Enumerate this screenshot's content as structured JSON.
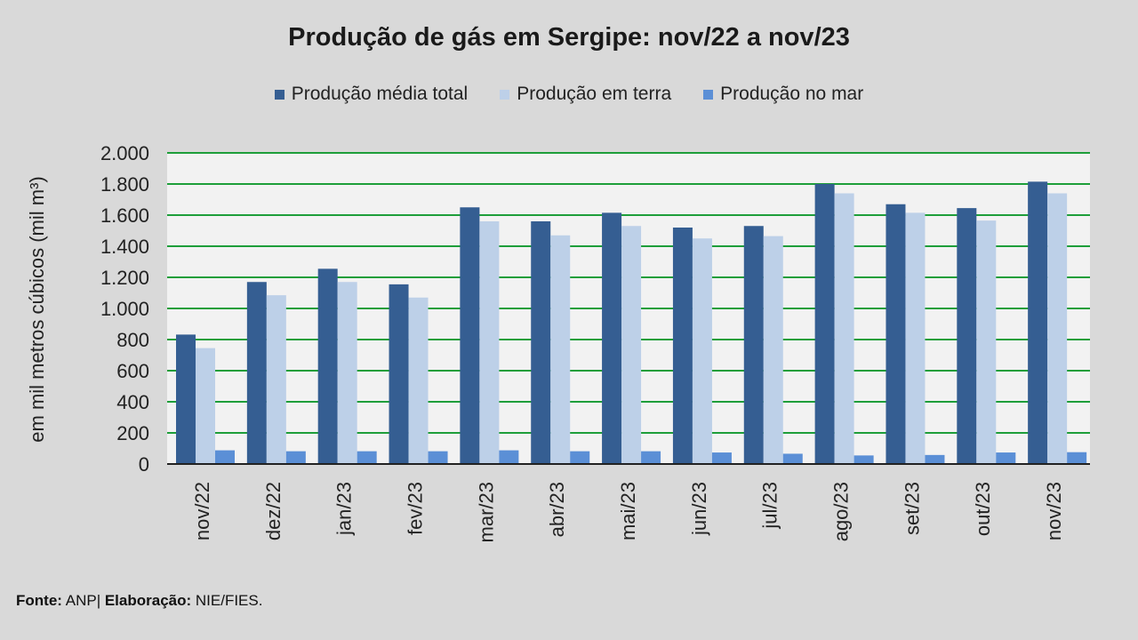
{
  "chart_data": {
    "type": "bar",
    "title": "Produção de gás em Sergipe: nov/22 a nov/23",
    "ylabel": "em mil metros cúbicos (mil m³)",
    "xlabel": "",
    "ylim": [
      0,
      2000
    ],
    "yticks": [
      0,
      200,
      400,
      600,
      800,
      1000,
      1200,
      1400,
      1600,
      1800,
      2000
    ],
    "ytick_labels": [
      "0",
      "200",
      "400",
      "600",
      "800",
      "1.000",
      "1.200",
      "1.400",
      "1.600",
      "1.800",
      "2.000"
    ],
    "grid": true,
    "legend_position": "top-center",
    "categories": [
      "nov/22",
      "dez/22",
      "jan/23",
      "fev/23",
      "mar/23",
      "abr/23",
      "mai/23",
      "jun/23",
      "jul/23",
      "ago/23",
      "set/23",
      "out/23",
      "nov/23"
    ],
    "series": [
      {
        "name": "Produção média total",
        "color": "#355e92",
        "values": [
          832,
          1170,
          1255,
          1155,
          1650,
          1560,
          1615,
          1520,
          1530,
          1800,
          1670,
          1645,
          1815
        ]
      },
      {
        "name": "Produção em terra",
        "color": "#bdd0e8",
        "values": [
          745,
          1085,
          1170,
          1070,
          1560,
          1470,
          1530,
          1450,
          1465,
          1740,
          1615,
          1565,
          1740
        ]
      },
      {
        "name": "Produção no mar",
        "color": "#5b8fd6",
        "values": [
          88,
          82,
          82,
          82,
          88,
          82,
          82,
          74,
          66,
          55,
          58,
          74,
          76
        ]
      }
    ],
    "colors": {
      "gridline": "#1e9e3a",
      "plot_background": "#f2f2f2",
      "page_background": "#d9d9d9"
    }
  },
  "source": {
    "label": "Fonte:",
    "value": "ANP|",
    "elab_label": "Elaboração:",
    "elab_value": "NIE/FIES."
  }
}
